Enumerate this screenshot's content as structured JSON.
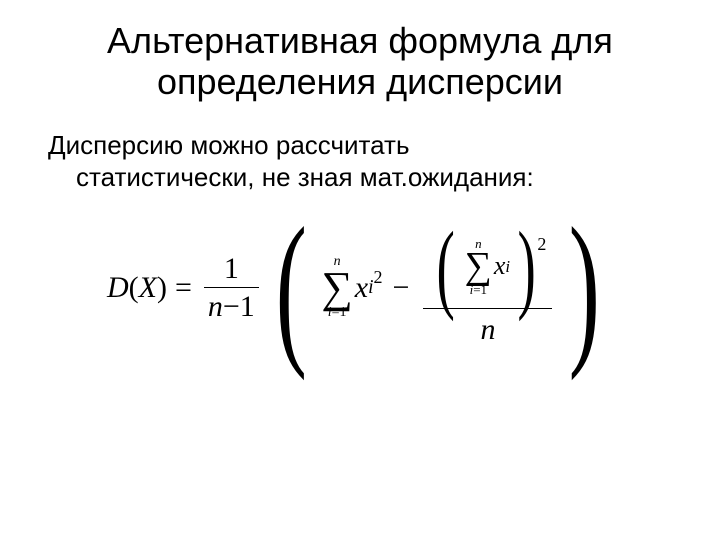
{
  "title_line1": "Альтернативная формула для",
  "title_line2": "определения дисперсии",
  "body_line1": "Дисперсию можно рассчитать",
  "body_line2": "статистически, не зная мат.ожидания:",
  "formula": {
    "lhs_D": "D",
    "lhs_X": "X",
    "eq": "=",
    "one": "1",
    "n": "n",
    "minus1": "1",
    "sum_top": "n",
    "sum_bot_i": "i",
    "sum_bot_eq1": "=1",
    "x": "x",
    "i": "i",
    "sq": "2",
    "minus": "−"
  }
}
